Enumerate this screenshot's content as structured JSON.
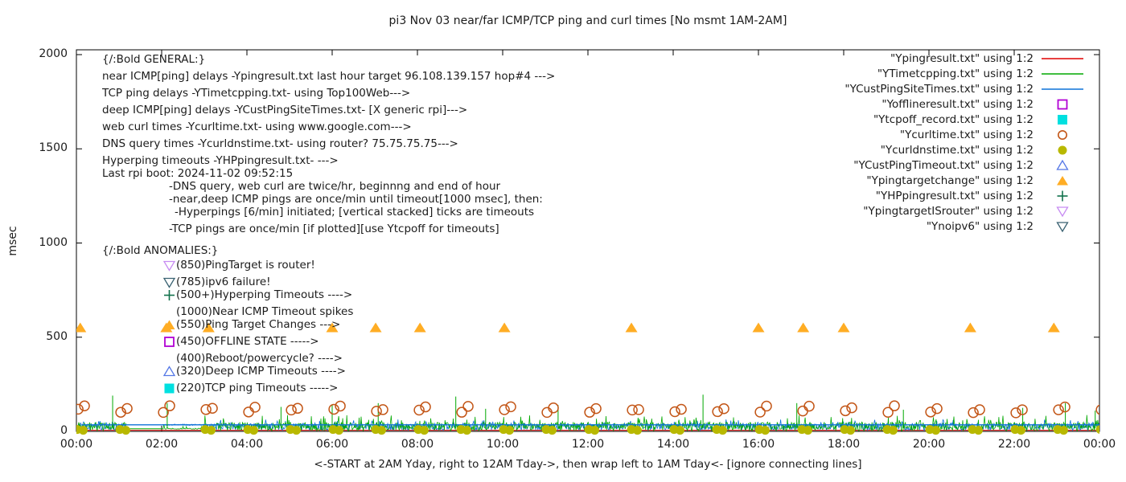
{
  "title": "pi3 Nov 03  near/far ICMP/TCP ping and curl times [No msmt 1AM-2AM]",
  "axes": {
    "y_label": "msec",
    "y_ticks": [
      "0",
      "500",
      "1000",
      "1500",
      "2000"
    ],
    "x_ticks": [
      "00:00",
      "02:00",
      "04:00",
      "06:00",
      "08:00",
      "10:00",
      "12:00",
      "14:00",
      "16:00",
      "18:00",
      "20:00",
      "22:00",
      "00:00"
    ],
    "x_caption": "<-START at 2AM Yday, right to 12AM Tday->, then wrap left to 1AM Tday<- [ignore connecting lines]"
  },
  "legend": [
    {
      "id": "ping",
      "label": "\"Ypingresult.txt\" using 1:2",
      "marker": "line",
      "color": "#e00000"
    },
    {
      "id": "tcp",
      "label": "\"YTimetcpping.txt\" using 1:2",
      "marker": "line",
      "color": "#00a800"
    },
    {
      "id": "cust",
      "label": "\"YCustPingSiteTimes.txt\" using 1:2",
      "marker": "line",
      "color": "#0d72d8"
    },
    {
      "id": "offline",
      "label": "\"Yofflineresult.txt\" using 1:2",
      "marker": "square-open",
      "color": "#b100d4"
    },
    {
      "id": "tcpoff",
      "label": "\"Ytcpoff_record.txt\" using 1:2",
      "marker": "square-fill",
      "color": "#00e0e0"
    },
    {
      "id": "curl",
      "label": "\"Ycurltime.txt\" using 1:2",
      "marker": "circle-open",
      "color": "#c35617"
    },
    {
      "id": "dns",
      "label": "\"Ycurldnstime.txt\" using 1:2",
      "marker": "circle-fill",
      "color": "#b8b800"
    },
    {
      "id": "custtimeout",
      "label": "\"YCustPingTimeout.txt\" using 1:2",
      "marker": "tri-up-open",
      "color": "#5578e6"
    },
    {
      "id": "targetchange",
      "label": "\"Ypingtargetchange\" using 1:2",
      "marker": "tri-up-fill",
      "color": "#ffad24"
    },
    {
      "id": "hp",
      "label": "\"YHPpingresult.txt\" using 1:2",
      "marker": "plus",
      "color": "#11724c"
    },
    {
      "id": "isrouter",
      "label": "\"YpingtargetISrouter\" using 1:2",
      "marker": "tri-down-open",
      "color": "#c78cf2"
    },
    {
      "id": "noipv6",
      "label": "\"Ynoipv6\" using 1:2",
      "marker": "tri-down-open",
      "color": "#3a6272"
    }
  ],
  "annotations": {
    "general": [
      {
        "text": "{/:Bold GENERAL:}"
      },
      {
        "text": "near ICMP[ping] delays -Ypingresult.txt last hour target 96.108.139.157 hop#4 --->"
      },
      {
        "text": "TCP ping delays -YTimetcpping.txt- using Top100Web--->"
      },
      {
        "text": "deep ICMP[ping] delays -YCustPingSiteTimes.txt- [X generic rpi]--->"
      },
      {
        "text": "web curl times -Ycurltime.txt- using www.google.com--->"
      },
      {
        "text": "DNS query times -Ycurldnstime.txt- using router? 75.75.75.75--->"
      },
      {
        "text": "Hyperping timeouts -YHPpingresult.txt- --->"
      },
      {
        "text": "Last rpi boot: 2024-11-02 09:52:15"
      },
      {
        "text": "-DNS query, web curl are twice/hr, beginnng and end of hour",
        "indent": 1
      },
      {
        "text": "-near,deep ICMP pings are once/min until timeout[1000 msec], then:",
        "indent": 1
      },
      {
        "text": "-Hyperpings [6/min] initiated; [vertical stacked] ticks are timeouts",
        "indent": 2
      },
      {
        "text": "-TCP pings are once/min [if plotted][use Ytcpoff for timeouts]",
        "indent": 1
      }
    ],
    "anomalies_header": "{/:Bold ANOMALIES:}",
    "anomalies": [
      {
        "text": "(850)PingTarget is router!",
        "marker": "tri-down-open",
        "color": "#c78cf2"
      },
      {
        "text": "(785)ipv6 failure!",
        "marker": "tri-down-open",
        "color": "#3a6272"
      },
      {
        "text": "(500+)Hyperping Timeouts ---->",
        "marker": "plus",
        "color": "#11724c"
      },
      {
        "text": "(1000)Near ICMP Timeout spikes"
      },
      {
        "text": "(550)Ping Target Changes --->",
        "marker": "tri-up-fill",
        "color": "#ffad24"
      },
      {
        "text": "(450)OFFLINE STATE ----->",
        "marker": "square-open",
        "color": "#b100d4"
      },
      {
        "text": "(400)Reboot/powercycle? ---->"
      },
      {
        "text": "(320)Deep ICMP Timeouts ---->",
        "marker": "tri-up-open",
        "color": "#5578e6"
      },
      {
        "text": "(220)TCP ping Timeouts ----->",
        "marker": "square-fill",
        "color": "#00e0e0"
      }
    ]
  },
  "chart_data": {
    "type": "line+scatter",
    "title": "pi3 Nov 03  near/far ICMP/TCP ping and curl times [No msmt 1AM-2AM]",
    "ylabel": "msec",
    "xlim_hours": [
      0,
      24
    ],
    "ylim": [
      0,
      2000
    ],
    "grid": false,
    "legend_position": "top-right",
    "noise_seed": 20241103,
    "no_measurement_gap_hours": [
      1.17,
      2.02
    ],
    "sparse_hours": [
      2.02,
      3.0
    ],
    "near_icmp_red_baseline_msec": 6,
    "deep_icmp_blue_line_msec": 35,
    "gap_connector_green_msec": 14,
    "band": {
      "step_h": 0.016,
      "green_range_msec": [
        2,
        50
      ],
      "green_spike_range_msec": [
        55,
        88
      ],
      "green_spike_p": 0.07,
      "blue_range_msec": [
        6,
        46
      ],
      "blue_spike_range_msec": [
        45,
        64
      ],
      "blue_spike_p": 0.05
    },
    "green_tall_spikes_h_msec": [
      [
        0.85,
        190
      ],
      [
        2.13,
        150
      ],
      [
        4.8,
        130
      ],
      [
        6.0,
        140
      ],
      [
        7.08,
        150
      ],
      [
        8.9,
        185
      ],
      [
        9.6,
        120
      ],
      [
        11.3,
        140
      ],
      [
        14.7,
        195
      ],
      [
        16.9,
        150
      ],
      [
        19.4,
        115
      ],
      [
        22.2,
        125
      ],
      [
        23.2,
        150
      ],
      [
        23.9,
        110
      ]
    ],
    "ping_target_changes": {
      "value_msec": 550,
      "hours": [
        0.09,
        2.11,
        3.1,
        6.0,
        7.02,
        8.06,
        10.04,
        13.02,
        16.0,
        17.05,
        18.0,
        20.97,
        22.93
      ]
    },
    "curl_circles": {
      "hours_start": 0,
      "hours_end": 24,
      "pair_offsets_h": [
        0.04,
        0.19
      ],
      "msec_low_range": [
        98,
        118
      ],
      "msec_high_range": [
        112,
        136
      ]
    },
    "dns_circles": {
      "hours_start": 0,
      "hours_end": 24,
      "pair_offsets_h": [
        0.02,
        0.16
      ],
      "msec_values": [
        10,
        6
      ],
      "skip_hours": [
        2
      ]
    }
  }
}
